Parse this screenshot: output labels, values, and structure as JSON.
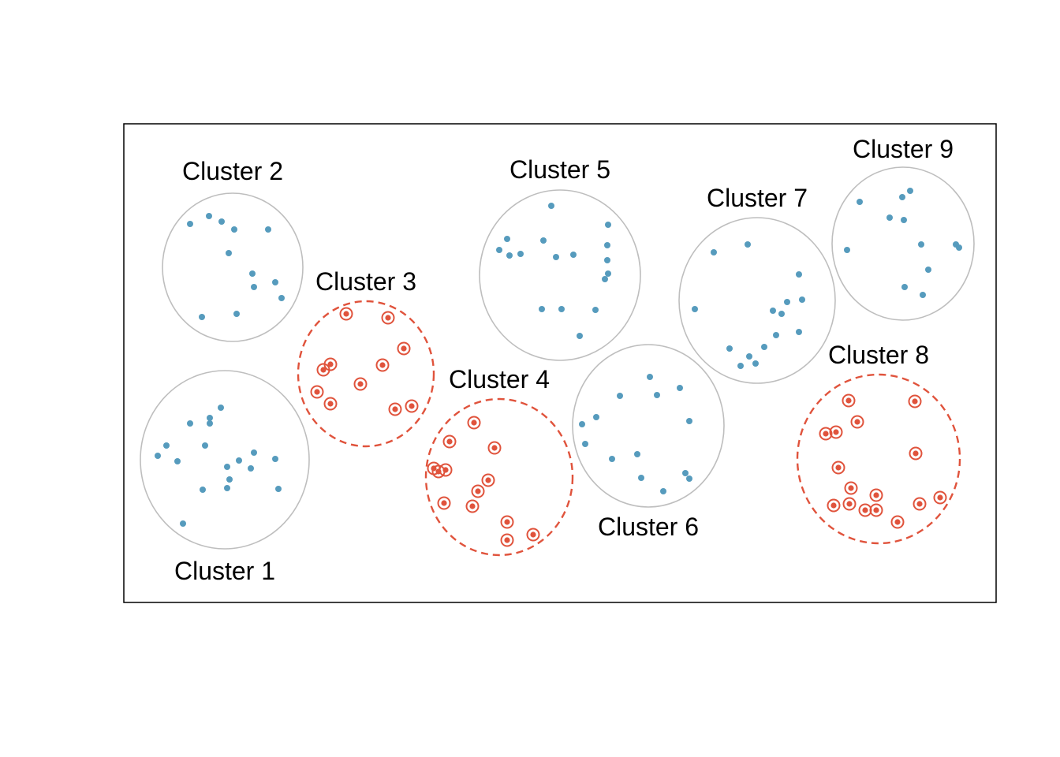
{
  "colors": {
    "background": "#ffffff",
    "frame": "#000000",
    "cluster_outline": "#bebebe",
    "unsampled_point": "#569bbd",
    "sampled_point": "#e0533c",
    "sampled_outline": "#e0533c",
    "label_text": "#000000"
  },
  "clusters": [
    {
      "id": 1,
      "label": "Cluster 1",
      "sampled": false
    },
    {
      "id": 2,
      "label": "Cluster 2",
      "sampled": false
    },
    {
      "id": 3,
      "label": "Cluster 3",
      "sampled": true
    },
    {
      "id": 4,
      "label": "Cluster 4",
      "sampled": true
    },
    {
      "id": 5,
      "label": "Cluster 5",
      "sampled": false
    },
    {
      "id": 6,
      "label": "Cluster 6",
      "sampled": false
    },
    {
      "id": 7,
      "label": "Cluster 7",
      "sampled": false
    },
    {
      "id": 8,
      "label": "Cluster 8",
      "sampled": true
    },
    {
      "id": 9,
      "label": "Cluster 9",
      "sampled": false
    }
  ]
}
